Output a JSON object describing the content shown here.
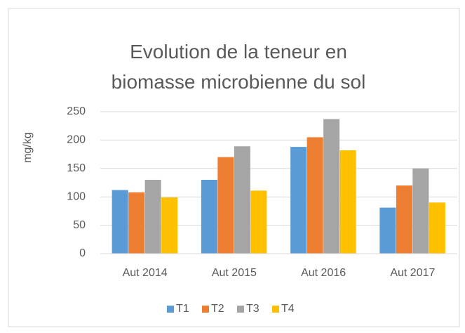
{
  "chart_data": {
    "type": "bar",
    "title": "Evolution de la teneur en biomasse microbienne du sol",
    "y_label": "mg/kg",
    "categories": [
      "Aut 2014",
      "Aut 2015",
      "Aut 2016",
      "Aut 2017"
    ],
    "series": [
      {
        "name": "T1",
        "color": "#5b9bd5",
        "values": [
          112,
          130,
          188,
          81
        ]
      },
      {
        "name": "T2",
        "color": "#ed7d31",
        "values": [
          108,
          170,
          205,
          120
        ]
      },
      {
        "name": "T3",
        "color": "#a5a5a5",
        "values": [
          130,
          189,
          237,
          150
        ]
      },
      {
        "name": "T4",
        "color": "#ffc000",
        "values": [
          99,
          111,
          182,
          90
        ]
      }
    ],
    "ylim": [
      0,
      250
    ],
    "yticks": [
      0,
      50,
      100,
      150,
      200,
      250
    ],
    "grid": true,
    "legend": "bottom"
  }
}
